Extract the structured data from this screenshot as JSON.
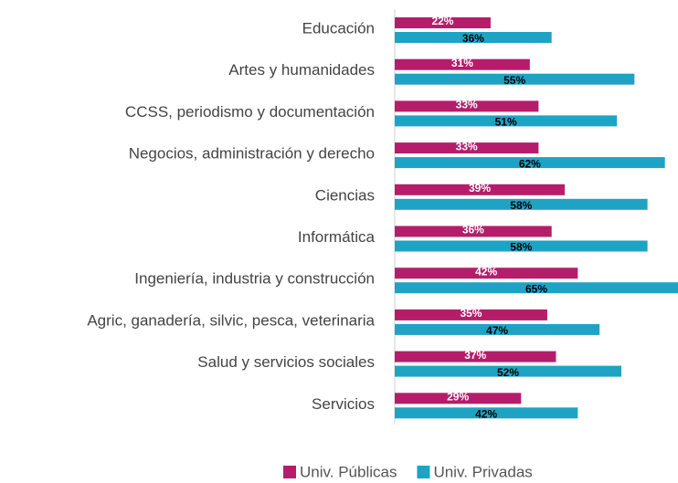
{
  "chart_data": {
    "type": "hbar",
    "categories": [
      "Educación",
      "Artes y humanidades",
      "CCSS, periodismo y documentación",
      "Negocios, administración y derecho",
      "Ciencias",
      "Informática",
      "Ingeniería, industria y construcción",
      "Agric, ganadería, silvic, pesca, veterinaria",
      "Salud y servicios sociales",
      "Servicios"
    ],
    "series": [
      {
        "name": "Univ. Públicas",
        "color": "#b51d6b",
        "values": [
          22,
          31,
          33,
          33,
          39,
          36,
          42,
          35,
          37,
          29
        ],
        "value_labels": [
          "22%",
          "31%",
          "33%",
          "33%",
          "39%",
          "36%",
          "42%",
          "35%",
          "37%",
          "29%"
        ]
      },
      {
        "name": "Univ. Privadas",
        "color": "#1fa3c4",
        "values": [
          36,
          55,
          51,
          62,
          58,
          58,
          65,
          47,
          52,
          42
        ],
        "value_labels": [
          "36%",
          "55%",
          "51%",
          "62%",
          "58%",
          "58%",
          "65%",
          "47%",
          "52%",
          "42%"
        ]
      }
    ],
    "xlim": [
      0,
      65
    ],
    "legend": "bottom"
  }
}
